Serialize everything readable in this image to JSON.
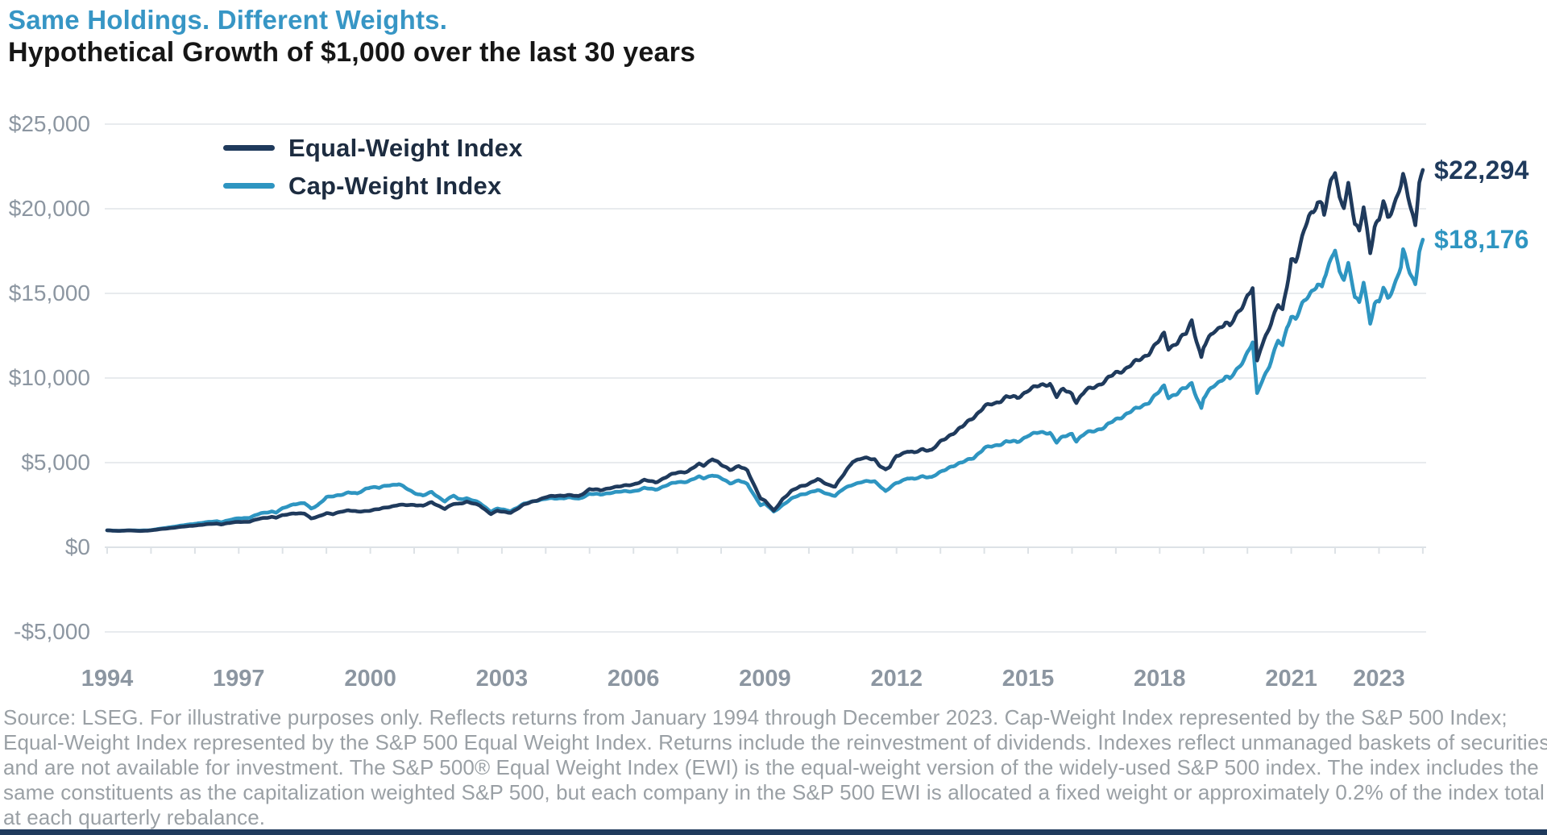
{
  "header": {
    "title": "Same Holdings. Different Weights.",
    "subtitle": "Hypothetical Growth of $1,000 over the last 30 years"
  },
  "colors": {
    "title_blue": "#3796c5",
    "equal_weight_navy": "#1f3a5c",
    "cap_weight_teal": "#2e95c1",
    "axis_label_gray": "#8c96a1",
    "gridline": "#e8ebee",
    "zero_axis": "#dde2e6",
    "footer_gray": "#9aa0a5",
    "bottom_bar_navy": "#1f3a5c"
  },
  "legend": [
    {
      "label": "Equal-Weight Index",
      "color": "#1f3a5c"
    },
    {
      "label": "Cap-Weight Index",
      "color": "#2e95c1"
    }
  ],
  "footer": {
    "lines": [
      "Source: LSEG. For illustrative purposes only. Reflects returns from January 1994 through December 2023. Cap-Weight Index represented by the S&P 500 Index;",
      "Equal-Weight Index represented by the S&P 500 Equal Weight Index. Returns include the reinvestment of dividends. Indexes reflect unmanaged baskets of securities",
      "and are not available for investment. The S&P 500® Equal Weight Index (EWI) is the equal-weight version of the widely-used S&P 500 index. The index includes the",
      "same constituents as the capitalization weighted S&P 500, but each company in the S&P 500 EWI is allocated a fixed weight or approximately 0.2% of the index total",
      "at each quarterly rebalance."
    ]
  },
  "chart_data": {
    "type": "line",
    "title": "Same Holdings. Different Weights.",
    "subtitle": "Hypothetical Growth of $1,000 over the last 30 years",
    "xlabel": "",
    "ylabel": "",
    "grid": true,
    "legend_position": "top-left-inside",
    "xlim": [
      1994,
      2024
    ],
    "ylim": [
      -5000,
      25000
    ],
    "y_ticks": [
      {
        "label": "$25,000",
        "value": 25000
      },
      {
        "label": "$20,000",
        "value": 20000
      },
      {
        "label": "$15,000",
        "value": 15000
      },
      {
        "label": "$10,000",
        "value": 10000
      },
      {
        "label": "$5,000",
        "value": 5000
      },
      {
        "label": "$0",
        "value": 0
      },
      {
        "label": "-$5,000",
        "value": -5000
      }
    ],
    "x_ticks": [
      {
        "label": "1994",
        "year": 1994
      },
      {
        "label": "1997",
        "year": 1997
      },
      {
        "label": "2000",
        "year": 2000
      },
      {
        "label": "2003",
        "year": 2003
      },
      {
        "label": "2006",
        "year": 2006
      },
      {
        "label": "2009",
        "year": 2009
      },
      {
        "label": "2012",
        "year": 2012
      },
      {
        "label": "2015",
        "year": 2015
      },
      {
        "label": "2018",
        "year": 2018
      },
      {
        "label": "2021",
        "year": 2021
      },
      {
        "label": "2023",
        "year": 2023
      }
    ],
    "minor_tick_years": [
      1994,
      2024,
      1
    ],
    "x": [
      1994.0,
      1994.25,
      1994.5,
      1994.75,
      1995.0,
      1995.25,
      1995.5,
      1995.75,
      1996.0,
      1996.25,
      1996.5,
      1996.6,
      1996.75,
      1997.0,
      1997.25,
      1997.5,
      1997.75,
      1997.85,
      1998.0,
      1998.25,
      1998.5,
      1998.65,
      1998.8,
      1999.0,
      1999.15,
      1999.33,
      1999.5,
      1999.7,
      1999.9,
      2000.0,
      2000.2,
      2000.4,
      2000.65,
      2000.8,
      2001.0,
      2001.2,
      2001.4,
      2001.7,
      2001.9,
      2002.0,
      2002.2,
      2002.5,
      2002.75,
      2002.9,
      2003.0,
      2003.2,
      2003.5,
      2003.75,
      2004.0,
      2004.25,
      2004.5,
      2004.75,
      2005.0,
      2005.25,
      2005.5,
      2005.75,
      2006.0,
      2006.25,
      2006.5,
      2006.75,
      2007.0,
      2007.25,
      2007.5,
      2007.6,
      2007.8,
      2008.0,
      2008.2,
      2008.4,
      2008.6,
      2008.75,
      2008.9,
      2009.0,
      2009.1,
      2009.2,
      2009.4,
      2009.6,
      2009.8,
      2010.0,
      2010.2,
      2010.45,
      2010.6,
      2010.8,
      2011.0,
      2011.2,
      2011.5,
      2011.6,
      2011.75,
      2011.85,
      2012.0,
      2012.25,
      2012.4,
      2012.6,
      2012.8,
      2013.0,
      2013.25,
      2013.5,
      2013.75,
      2014.0,
      2014.25,
      2014.5,
      2014.75,
      2015.0,
      2015.25,
      2015.5,
      2015.65,
      2015.8,
      2016.0,
      2016.1,
      2016.3,
      2016.5,
      2016.75,
      2017.0,
      2017.25,
      2017.5,
      2017.75,
      2018.0,
      2018.1,
      2018.2,
      2018.4,
      2018.6,
      2018.73,
      2018.95,
      2019.0,
      2019.25,
      2019.5,
      2019.6,
      2019.8,
      2020.0,
      2020.12,
      2020.22,
      2020.3,
      2020.5,
      2020.7,
      2020.8,
      2020.9,
      2021.0,
      2021.1,
      2021.25,
      2021.4,
      2021.5,
      2021.6,
      2021.7,
      2021.75,
      2021.9,
      2022.0,
      2022.1,
      2022.2,
      2022.3,
      2022.45,
      2022.55,
      2022.65,
      2022.8,
      2022.9,
      2023.0,
      2023.1,
      2023.2,
      2023.35,
      2023.5,
      2023.55,
      2023.7,
      2023.83,
      2023.92,
      2024.0
    ],
    "series": [
      {
        "name": "Equal-Weight Index",
        "color": "#1f3a5c",
        "end_label": "$22,294",
        "end_value": 22294,
        "values": [
          1000,
          965,
          995,
          960,
          1000,
          1080,
          1150,
          1220,
          1290,
          1350,
          1400,
          1360,
          1420,
          1500,
          1520,
          1700,
          1800,
          1750,
          1880,
          2020,
          1980,
          1700,
          1820,
          2000,
          1950,
          2120,
          2180,
          2100,
          2150,
          2180,
          2250,
          2380,
          2500,
          2480,
          2520,
          2450,
          2650,
          2280,
          2550,
          2560,
          2700,
          2450,
          1980,
          2150,
          2090,
          2050,
          2500,
          2750,
          2950,
          3050,
          3080,
          3000,
          3450,
          3350,
          3550,
          3600,
          3730,
          3950,
          3850,
          4150,
          4420,
          4500,
          4900,
          4850,
          5240,
          4850,
          4600,
          4800,
          4500,
          3700,
          2900,
          2730,
          2450,
          2150,
          2850,
          3300,
          3600,
          3760,
          4000,
          3700,
          3600,
          4300,
          5100,
          5250,
          5200,
          4900,
          4570,
          4750,
          5400,
          5700,
          5550,
          5800,
          5750,
          6200,
          6700,
          7100,
          7700,
          8300,
          8500,
          8900,
          8800,
          9330,
          9500,
          9710,
          8900,
          9300,
          9100,
          8600,
          9200,
          9500,
          9800,
          10300,
          10600,
          11000,
          11500,
          12200,
          12600,
          11800,
          12100,
          12600,
          13400,
          11200,
          11800,
          12800,
          13300,
          13000,
          13900,
          14900,
          15300,
          10900,
          11700,
          13100,
          14300,
          13900,
          15400,
          17100,
          17000,
          18200,
          19500,
          19800,
          20600,
          20300,
          19700,
          21400,
          22200,
          20700,
          20300,
          21400,
          19000,
          18600,
          20300,
          17500,
          18800,
          19200,
          20400,
          19600,
          20300,
          21300,
          21800,
          20400,
          19100,
          21600,
          22294
        ]
      },
      {
        "name": "Cap-Weight Index",
        "color": "#2e95c1",
        "end_label": "$18,176",
        "end_value": 18176,
        "values": [
          1000,
          970,
          1000,
          985,
          1013,
          1110,
          1210,
          1300,
          1394,
          1470,
          1540,
          1490,
          1580,
          1715,
          1750,
          2000,
          2120,
          2050,
          2288,
          2560,
          2600,
          2280,
          2500,
          2942,
          3000,
          3120,
          3240,
          3150,
          3480,
          3560,
          3500,
          3680,
          3720,
          3500,
          3236,
          3050,
          3250,
          2720,
          3050,
          2851,
          2900,
          2600,
          2120,
          2280,
          2221,
          2150,
          2550,
          2750,
          2858,
          2890,
          2940,
          2850,
          3170,
          3100,
          3250,
          3280,
          3325,
          3480,
          3420,
          3650,
          3850,
          3900,
          4150,
          4100,
          4270,
          4062,
          3800,
          3950,
          3700,
          3100,
          2500,
          2559,
          2350,
          2090,
          2500,
          2850,
          3100,
          3237,
          3350,
          3150,
          3050,
          3450,
          3726,
          3850,
          3900,
          3700,
          3300,
          3500,
          3804,
          4100,
          4000,
          4200,
          4150,
          4412,
          4800,
          5000,
          5300,
          5842,
          6000,
          6250,
          6200,
          6642,
          6750,
          6800,
          6200,
          6500,
          6735,
          6300,
          6700,
          6900,
          7100,
          7543,
          7900,
          8200,
          8600,
          9187,
          9500,
          8900,
          9100,
          9400,
          9700,
          8200,
          8783,
          9600,
          10100,
          9900,
          10600,
          11550,
          12100,
          9000,
          9600,
          10800,
          12200,
          11800,
          13000,
          13675,
          13600,
          14300,
          14800,
          15200,
          15700,
          15400,
          15900,
          16800,
          17600,
          16300,
          16000,
          16700,
          14700,
          14400,
          15800,
          13300,
          14300,
          14414,
          15300,
          14800,
          15500,
          16500,
          17400,
          16300,
          15600,
          17500,
          18176
        ]
      }
    ]
  }
}
